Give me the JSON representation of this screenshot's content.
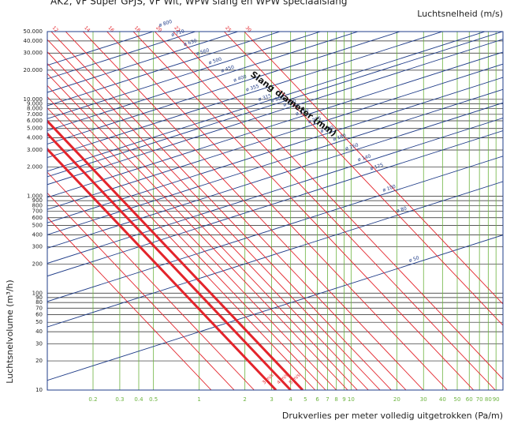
{
  "chart_data": {
    "type": "nomogram",
    "title": "AK2, VF Super GPJS, VF Wit, WPW slang en WPW speciaalslang",
    "top_label": "Luchtsnelheid (m/s)",
    "diameter_title": "Slang diameter (mm)",
    "x_label": "Drukverlies per meter volledig uitgetrokken (Pa/m)",
    "y_label": "Luchtsnelvolume (m³/h)",
    "log_x": true,
    "log_y": true,
    "xlim": [
      0.1,
      100
    ],
    "ylim": [
      10,
      50000
    ],
    "x_grid_color": "#6cb33f",
    "y_grid_color": "#222222",
    "xticks": [
      0.2,
      0.3,
      0.4,
      0.5,
      1,
      2,
      3,
      4,
      5,
      6,
      7,
      8,
      9,
      10,
      20,
      30,
      40,
      50,
      60,
      70,
      80,
      90
    ],
    "yticks": [
      10,
      20,
      30,
      40,
      50,
      60,
      70,
      80,
      90,
      100,
      200,
      300,
      400,
      500,
      600,
      700,
      800,
      900,
      {
        "value": 1000,
        "label": "1.000"
      },
      {
        "value": 2000,
        "label": "2.000"
      },
      {
        "value": 3000,
        "label": "3.000"
      },
      {
        "value": 4000,
        "label": "4.000"
      },
      {
        "value": 5000,
        "label": "5.000"
      },
      {
        "value": 6000,
        "label": "6.000"
      },
      {
        "value": 7000,
        "label": "7.000"
      },
      {
        "value": 8000,
        "label": "8.000"
      },
      {
        "value": 9000,
        "label": "9.000"
      },
      {
        "value": 10000,
        "label": "10.000"
      },
      {
        "value": 20000,
        "label": "20.000"
      },
      {
        "value": 30000,
        "label": "30.000"
      },
      {
        "value": 40000,
        "label": "40.000"
      },
      {
        "value": 50000,
        "label": "50.000"
      }
    ],
    "velocity_lines": {
      "color": "#e3242b",
      "series": [
        {
          "x": [
            0.0069,
            1.2
          ],
          "y": [
            50000,
            10
          ]
        },
        {
          "x": [
            0.0098,
            1.7
          ],
          "y": [
            50000,
            10
          ]
        },
        {
          "x": [
            0.0132,
            2.3
          ],
          "y": [
            50000,
            10
          ]
        },
        {
          "name": "3 m/s",
          "thick": true,
          "x": [
            0.0184,
            3.2
          ],
          "y": [
            50000,
            10
          ]
        },
        {
          "name": "4 m/s",
          "thick": true,
          "x": [
            0.023,
            4.0
          ],
          "y": [
            50000,
            10
          ]
        },
        {
          "name": "5 m/s",
          "thick": true,
          "x": [
            0.0276,
            4.8
          ],
          "y": [
            50000,
            10
          ]
        },
        {
          "x": [
            0.0333,
            5.8
          ],
          "y": [
            50000,
            10
          ]
        },
        {
          "x": [
            0.0391,
            6.8
          ],
          "y": [
            50000,
            10
          ]
        },
        {
          "x": [
            0.046,
            8
          ],
          "y": [
            50000,
            10
          ]
        },
        {
          "x": [
            0.0546,
            9.5
          ],
          "y": [
            50000,
            10
          ]
        },
        {
          "x": [
            0.0632,
            11
          ],
          "y": [
            50000,
            10
          ]
        },
        {
          "x": [
            0.0747,
            13
          ],
          "y": [
            50000,
            10
          ]
        },
        {
          "x": [
            0.0891,
            15.5
          ],
          "y": [
            50000,
            10
          ]
        },
        {
          "name": "12",
          "x": [
            0.106,
            18.4
          ],
          "y": [
            50000,
            10
          ]
        },
        {
          "x": [
            0.132,
            23
          ],
          "y": [
            50000,
            10
          ]
        },
        {
          "name": "14",
          "x": [
            0.172,
            29.9
          ],
          "y": [
            50000,
            10
          ]
        },
        {
          "name": "16",
          "x": [
            0.247,
            43
          ],
          "y": [
            50000,
            10
          ]
        },
        {
          "name": "18",
          "x": [
            0.368,
            64
          ],
          "y": [
            50000,
            10
          ]
        },
        {
          "name": "20",
          "x": [
            0.51,
            89
          ],
          "y": [
            50000,
            10
          ]
        },
        {
          "name": "22",
          "x": [
            0.673,
            117
          ],
          "y": [
            50000,
            10
          ]
        },
        {
          "name": "25",
          "x": [
            1.46,
            254
          ],
          "y": [
            50000,
            10
          ]
        },
        {
          "name": "30",
          "x": [
            1.98,
            345
          ],
          "y": [
            50000,
            10
          ]
        }
      ]
    },
    "diameter_lines": {
      "color": "#1f3c88",
      "series": [
        {
          "name": "ø 50",
          "x": [
            0.1,
            100
          ],
          "y": [
            12.6,
            398
          ]
        },
        {
          "name": "ø 80",
          "x": [
            0.1,
            100
          ],
          "y": [
            44.8,
            1417
          ]
        },
        {
          "name": "ø 100",
          "x": [
            0.1,
            100
          ],
          "y": [
            81.9,
            2590
          ]
        },
        {
          "name": "ø 125",
          "x": [
            0.1,
            100
          ],
          "y": [
            150,
            4743
          ]
        },
        {
          "name": "ø 140",
          "x": [
            0.1,
            100
          ],
          "y": [
            203,
            6419
          ]
        },
        {
          "name": "ø 160",
          "x": [
            0.1,
            100
          ],
          "y": [
            291,
            9201
          ]
        },
        {
          "name": "ø 180",
          "x": [
            0.1,
            100
          ],
          "y": [
            400,
            12650
          ]
        },
        {
          "name": "ø 200",
          "x": [
            0.1,
            100
          ],
          "y": [
            532,
            16820
          ]
        },
        {
          "name": "ø 225",
          "x": [
            0.1,
            100
          ],
          "y": [
            731,
            23110
          ]
        },
        {
          "name": "ø 250",
          "x": [
            0.1,
            100
          ],
          "y": [
            971,
            30700
          ]
        },
        {
          "name": "ø 280",
          "x": [
            0.1,
            100
          ],
          "y": [
            1319,
            41710
          ]
        },
        {
          "name": "ø 300",
          "x": [
            0.1,
            100
          ],
          "y": [
            1588,
            50210
          ]
        },
        {
          "name": "ø 315",
          "x": [
            0.1,
            100
          ],
          "y": [
            1813,
            57330
          ]
        },
        {
          "name": "ø 355",
          "x": [
            0.1,
            100
          ],
          "y": [
            2505,
            79210
          ]
        },
        {
          "name": "ø 400",
          "x": [
            0.1,
            100
          ],
          "y": [
            3453,
            109200
          ]
        },
        {
          "name": "ø 450",
          "x": [
            0.1,
            100
          ],
          "y": [
            4750,
            150200
          ]
        },
        {
          "name": "ø 500",
          "x": [
            0.1,
            100
          ],
          "y": [
            6313,
            199600
          ]
        },
        {
          "name": "ø 560",
          "x": [
            0.1,
            100
          ],
          "y": [
            8580,
            271300
          ]
        },
        {
          "name": "ø 630",
          "x": [
            0.1,
            100
          ],
          "y": [
            11790,
            372800
          ]
        },
        {
          "name": "ø 710",
          "x": [
            0.1,
            100
          ],
          "y": [
            16270,
            514500
          ]
        },
        {
          "name": "ø 800",
          "x": [
            0.1,
            100
          ],
          "y": [
            22450,
            709900
          ]
        }
      ]
    }
  }
}
